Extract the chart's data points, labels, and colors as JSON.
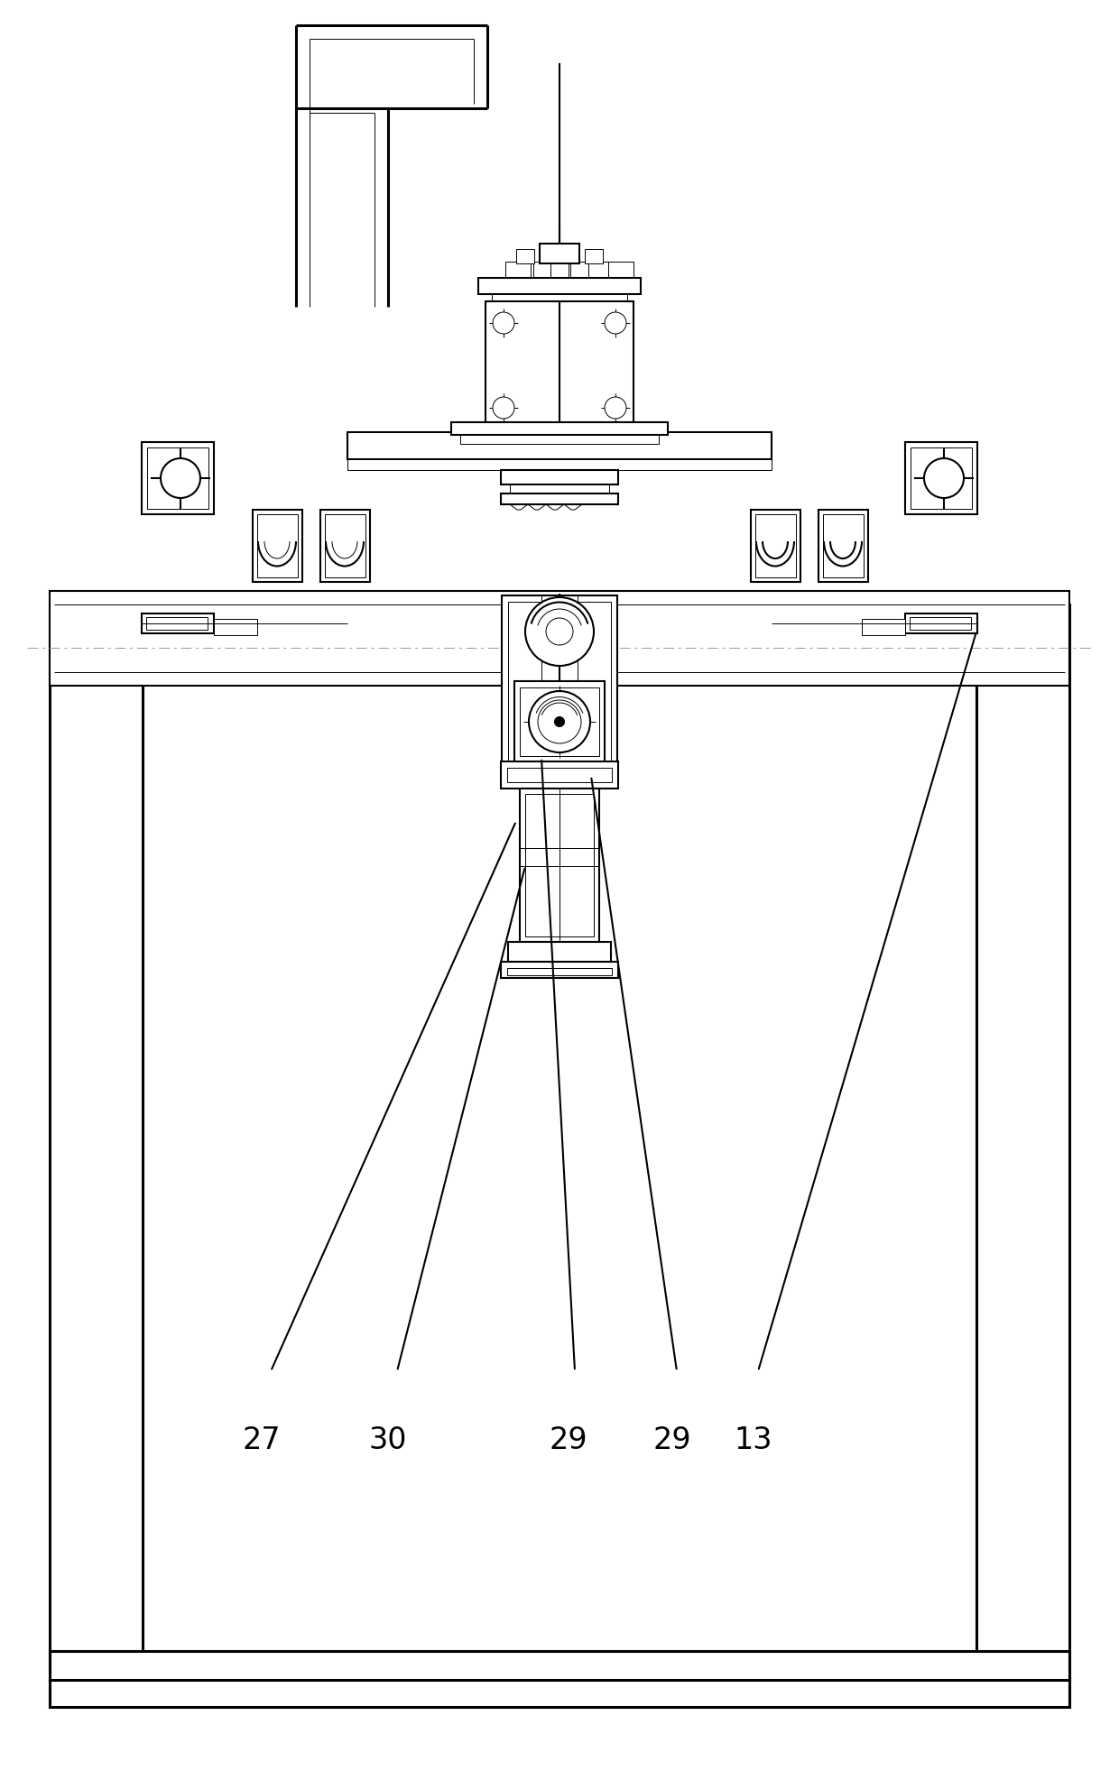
{
  "bg_color": "#ffffff",
  "line_color": "#000000",
  "lw": 1.5,
  "tlw": 0.7,
  "thk": 2.2,
  "fig_width": 12.4,
  "fig_height": 19.63
}
